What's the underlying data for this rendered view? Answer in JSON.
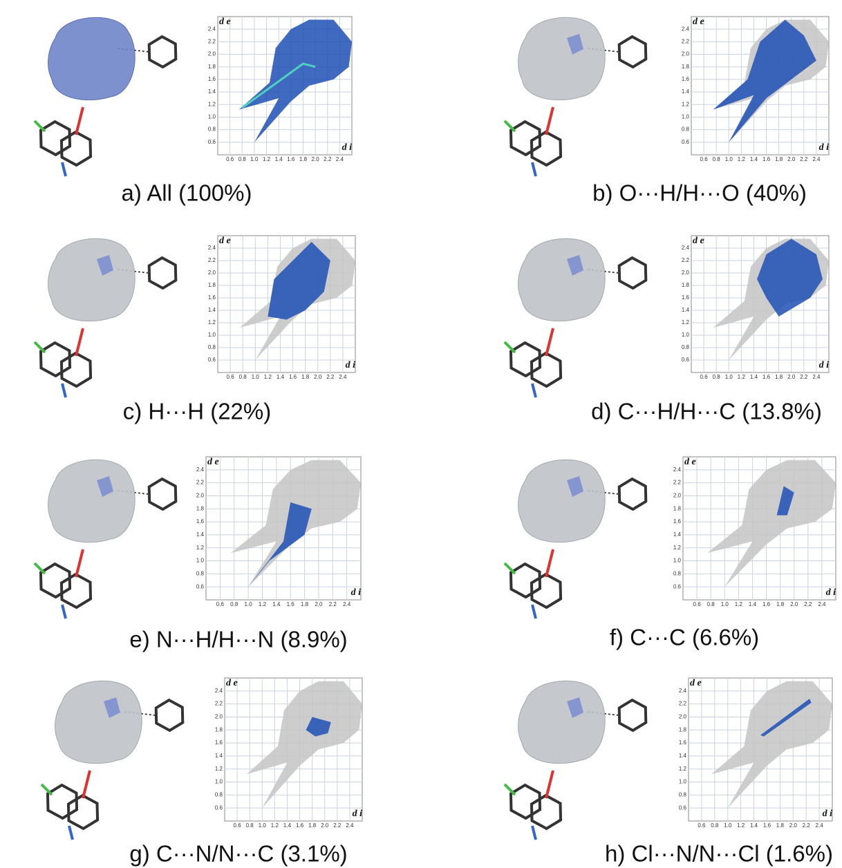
{
  "figure": {
    "axis": {
      "x_label": "d i",
      "y_label": "d e",
      "xlim": [
        0.4,
        2.6
      ],
      "ylim": [
        0.4,
        2.6
      ],
      "xticks": [
        0.6,
        0.8,
        {
          "value": 1,
          "label": "1.0"
        },
        1.2,
        1.4,
        1.6,
        1.8,
        {
          "value": 2,
          "label": "2.0"
        },
        2.2,
        2.4
      ],
      "yticks": [
        0.6,
        0.8,
        {
          "value": 1,
          "label": "1.0"
        },
        1.2,
        1.4,
        1.6,
        1.8,
        {
          "value": 2,
          "label": "2.0"
        },
        2.2,
        2.4
      ]
    },
    "panels": [
      {
        "caption": "a) All (100%)"
      },
      {
        "caption": "b) O···H/H···O (40%)"
      },
      {
        "caption": "c) H···H (22%)"
      },
      {
        "caption": "d) C···H/H···C (13.8%)"
      },
      {
        "caption": "e) N···H/H···N (8.9%)"
      },
      {
        "caption": "f) C···C (6.6%)"
      },
      {
        "caption": "g) C···N/N···C (3.1%)"
      },
      {
        "caption": "h) Cl···N/N···Cl (1.6%)"
      }
    ]
  }
}
